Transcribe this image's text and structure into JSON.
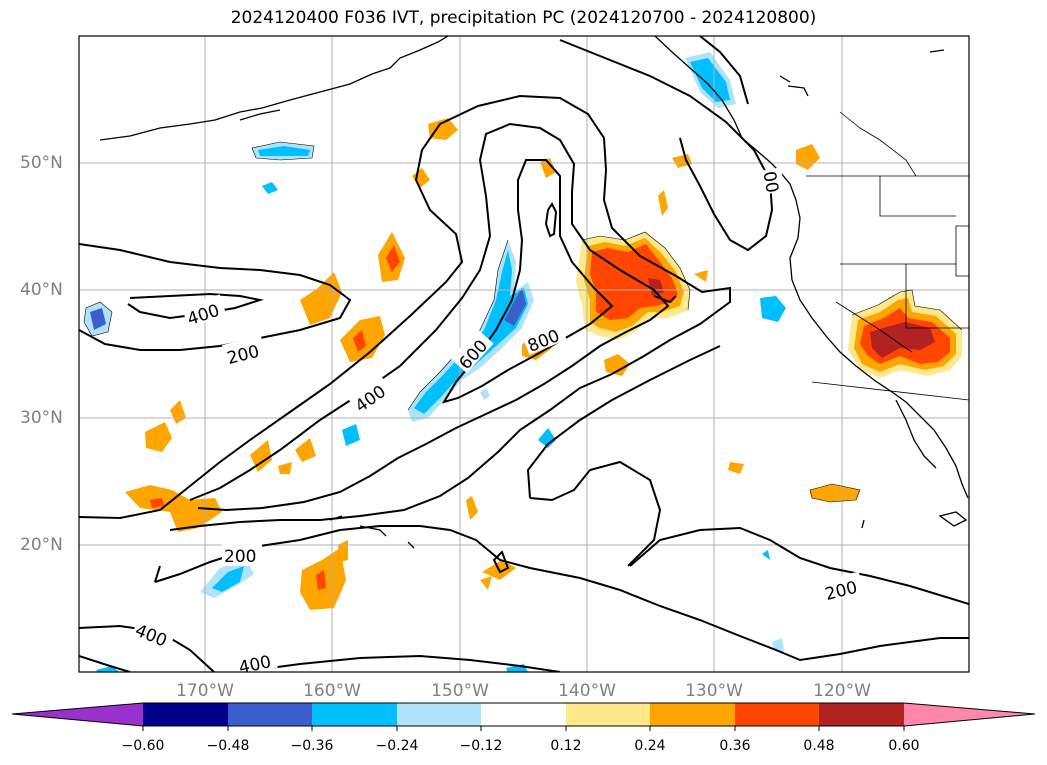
{
  "title": "2024120400 F036 IVT, precipitation PC (2024120700 - 2024120800)",
  "map": {
    "region": "North Pacific",
    "lon_range": [
      -180,
      -110
    ],
    "lat_range": [
      10,
      60
    ],
    "lat_labels": [
      "20°N",
      "30°N",
      "40°N",
      "50°N"
    ],
    "lon_labels": [
      "170°W",
      "160°W",
      "150°W",
      "140°W",
      "130°W",
      "120°W"
    ],
    "gridlines": true,
    "contour_labels": [
      "400",
      "200",
      "400",
      "600",
      "800",
      "200",
      "400",
      "200",
      "400",
      "00"
    ]
  },
  "colorbar": {
    "ticks": [
      "−0.60",
      "−0.48",
      "−0.36",
      "−0.24",
      "−0.12",
      "0.12",
      "0.24",
      "0.36",
      "0.48",
      "0.60"
    ],
    "colors": [
      "#9932cc",
      "#00008b",
      "#3a5fcd",
      "#00bfff",
      "#aee3fb",
      "#ffffff",
      "#ffe88a",
      "#ffa500",
      "#ff4500",
      "#b22222",
      "#ff88aa"
    ]
  }
}
